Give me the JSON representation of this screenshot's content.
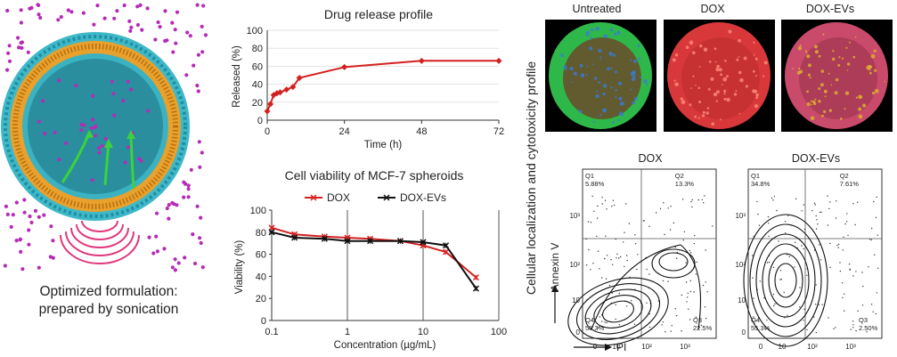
{
  "illustration": {
    "caption_line1": "Optimized formulation:",
    "caption_line2": "prepared by sonication",
    "colors": {
      "drug": "#b52bb8",
      "lipid_head": "#32b3c4",
      "lipid_tail": "#e8a12c",
      "arrow": "#3cd23c",
      "sound": "#e0387a"
    }
  },
  "release_chart": {
    "type": "line",
    "title": "Drug release profile",
    "xlabel": "Time (h)",
    "ylabel": "Released (%)",
    "xlim": [
      0,
      72
    ],
    "ylim": [
      0,
      100
    ],
    "xticks": [
      "0",
      "24",
      "48",
      "72"
    ],
    "yticks": [
      "0",
      "20",
      "40",
      "60",
      "80",
      "100"
    ],
    "series": [
      {
        "color": "#d42020",
        "x": [
          0,
          1,
          2,
          3,
          4,
          6,
          8,
          10,
          24,
          48,
          72
        ],
        "y": [
          10,
          18,
          28,
          30,
          31,
          34,
          37,
          47,
          59,
          66,
          66
        ]
      }
    ]
  },
  "viability_chart": {
    "type": "line",
    "title": "Cell viability of MCF-7 spheroids",
    "xlabel": "Concentration (µg/mL)",
    "ylabel": "Viability (%)",
    "xscale": "log",
    "xlim": [
      0.1,
      100
    ],
    "ylim": [
      0,
      100
    ],
    "xticks": [
      "0.1",
      "1",
      "10",
      "100"
    ],
    "yticks": [
      "0",
      "20",
      "40",
      "60",
      "80",
      "100"
    ],
    "legend": "top",
    "series": [
      {
        "name": "DOX",
        "color": "#d42020",
        "x": [
          0.1,
          0.2,
          0.5,
          1,
          2,
          5,
          10,
          20,
          50
        ],
        "y": [
          84,
          78,
          76,
          75,
          74,
          72,
          68,
          62,
          39
        ]
      },
      {
        "name": "DOX-EVs",
        "color": "#111111",
        "x": [
          0.1,
          0.2,
          0.5,
          1,
          2,
          5,
          10,
          20,
          50
        ],
        "y": [
          80,
          75,
          74,
          72,
          72,
          72,
          71,
          68,
          29
        ]
      }
    ]
  },
  "microscopy": {
    "side_label": "Cellular localization and cytotoxicity profile",
    "panels": [
      {
        "label": "Untreated",
        "outer": "#2fb84a",
        "inner": "#6b4a2a",
        "dots": "#3a7bd5"
      },
      {
        "label": "DOX",
        "outer": "#d8383a",
        "inner": "#c43030",
        "dots": "#ff8a7a"
      },
      {
        "label": "DOX-EVs",
        "outer": "#c94a6a",
        "inner": "#a83a55",
        "dots": "#e0b030"
      }
    ]
  },
  "flow": {
    "y_label": "Annexin V",
    "x_label": "PI",
    "axis_ticks": [
      "0",
      "10",
      "10²",
      "10³"
    ],
    "plots": [
      {
        "title": "DOX",
        "q1_label": "Q1",
        "q1": "5.88%",
        "q2_label": "Q2",
        "q2": "13.3%",
        "q3_label": "Q3",
        "q3": "22.5%",
        "q4_label": "Q4",
        "q4": "58.3%"
      },
      {
        "title": "DOX-EVs",
        "q1_label": "Q1",
        "q1": "34.8%",
        "q2_label": "Q2",
        "q2": "7.61%",
        "q3_label": "Q3",
        "q3": "2.50%",
        "q4_label": "Q4",
        "q4": "55.3%"
      }
    ]
  }
}
